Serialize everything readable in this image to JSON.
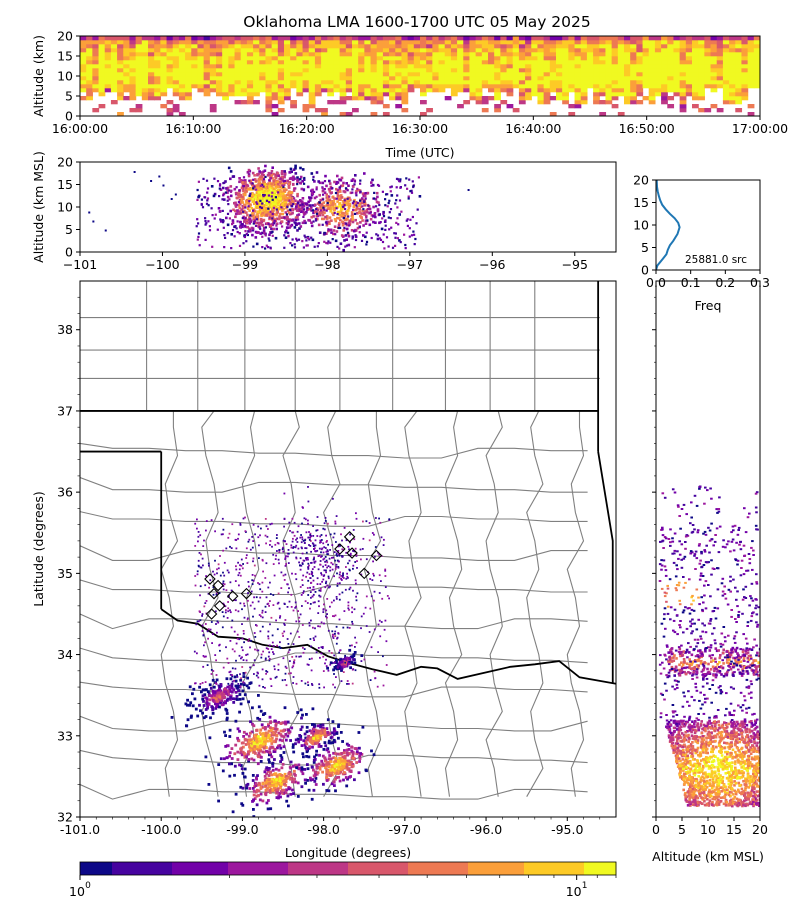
{
  "title": "Oklahoma LMA 1600-1700 UTC 05 May 2025",
  "colors": {
    "plasma": [
      "#0d0887",
      "#46039f",
      "#7201a8",
      "#9c179e",
      "#bd3786",
      "#d8576b",
      "#ed7953",
      "#fb9f3a",
      "#fdca26",
      "#f0f921"
    ],
    "histogram_line": "#1f77b4",
    "state_border": "#000000",
    "county_border": "#808080"
  },
  "chart_data": [
    {
      "id": "time-height",
      "type": "heatmap",
      "xlabel": "Time (UTC)",
      "ylabel": "Altitude (km)",
      "xlim": [
        "16:00:00",
        "17:00:00"
      ],
      "ylim": [
        0,
        20
      ],
      "x_ticks": [
        "16:00:00",
        "16:10:00",
        "16:20:00",
        "16:30:00",
        "16:40:00",
        "16:50:00",
        "17:00:00"
      ],
      "y_ticks": [
        "0",
        "5",
        "10",
        "15",
        "20"
      ]
    },
    {
      "id": "lon-height",
      "type": "heatmap",
      "ylabel": "Altitude (km MSL)",
      "xlim": [
        -101,
        -94.5
      ],
      "ylim": [
        0,
        20
      ],
      "x_ticks": [
        "−101",
        "−100",
        "−99",
        "−98",
        "−97",
        "−96",
        "−95"
      ],
      "y_ticks": [
        "0",
        "5",
        "10",
        "15",
        "20"
      ],
      "cores": [
        {
          "lon": -98.75,
          "alt": 12,
          "weight": 1.0
        },
        {
          "lon": -97.85,
          "alt": 10,
          "weight": 0.8
        }
      ]
    },
    {
      "id": "altitude-histogram",
      "type": "line",
      "xlabel": "Freq",
      "xlim": [
        0,
        0.3
      ],
      "ylim": [
        0,
        20
      ],
      "x_ticks": [
        "0.0",
        "0.1",
        "0.2",
        "0.3"
      ],
      "y_ticks": [
        "0",
        "5",
        "10",
        "15",
        "20"
      ],
      "annotation": "25881.0 src",
      "x": [
        0.0,
        0.004,
        0.02,
        0.03,
        0.034,
        0.04,
        0.05,
        0.062,
        0.068,
        0.064,
        0.054,
        0.04,
        0.028,
        0.018,
        0.012,
        0.008,
        0.005,
        0.003,
        0.002
      ],
      "y": [
        0,
        1,
        2.5,
        3.5,
        4.5,
        5.5,
        6.5,
        8,
        9.5,
        10.5,
        11.5,
        12.5,
        13.5,
        14.5,
        15.5,
        16.5,
        17.5,
        18.5,
        20
      ]
    },
    {
      "id": "plan-view",
      "type": "heatmap",
      "xlabel": "Longitude (degrees)",
      "ylabel": "Latitude (degrees)",
      "xlim": [
        -101,
        -94.4
      ],
      "ylim": [
        32,
        38.6
      ],
      "x_ticks": [
        "-101.0",
        "-100.0",
        "-99.0",
        "-98.0",
        "-97.0",
        "-96.0",
        "-95.0"
      ],
      "y_ticks": [
        "32",
        "33",
        "34",
        "35",
        "36",
        "37",
        "38"
      ],
      "storm_cells": [
        {
          "lon": -98.6,
          "lat": 32.45,
          "r": 0.35
        },
        {
          "lon": -98.8,
          "lat": 32.95,
          "r": 0.4
        },
        {
          "lon": -97.85,
          "lat": 32.65,
          "r": 0.35
        },
        {
          "lon": -98.1,
          "lat": 33.0,
          "r": 0.2
        },
        {
          "lon": -99.3,
          "lat": 33.5,
          "r": 0.3
        },
        {
          "lon": -97.75,
          "lat": 33.92,
          "r": 0.12
        }
      ],
      "stations": [
        {
          "lon": -97.68,
          "lat": 35.45
        },
        {
          "lon": -97.8,
          "lat": 35.3
        },
        {
          "lon": -97.5,
          "lat": 35.0
        },
        {
          "lon": -97.35,
          "lat": 35.22
        },
        {
          "lon": -97.65,
          "lat": 35.25
        },
        {
          "lon": -98.95,
          "lat": 34.75
        },
        {
          "lon": -99.12,
          "lat": 34.72
        },
        {
          "lon": -99.3,
          "lat": 34.85
        },
        {
          "lon": -99.35,
          "lat": 34.75
        },
        {
          "lon": -99.38,
          "lat": 34.5
        },
        {
          "lon": -99.28,
          "lat": 34.6
        },
        {
          "lon": -99.4,
          "lat": 34.93
        }
      ]
    },
    {
      "id": "height-lat",
      "type": "heatmap",
      "xlabel": "Altitude (km MSL)",
      "xlim": [
        0,
        20
      ],
      "ylim": [
        32,
        38.6
      ],
      "x_ticks": [
        "0",
        "5",
        "10",
        "15",
        "20"
      ]
    },
    {
      "id": "colorbar",
      "type": "heatmap",
      "scale": "log",
      "range": [
        1,
        12
      ],
      "tick_base": "10",
      "tick_exponents": [
        "0",
        "1"
      ]
    }
  ]
}
